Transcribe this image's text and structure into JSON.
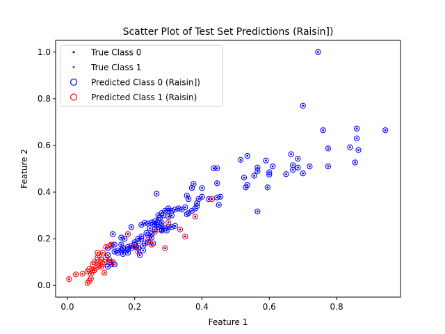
{
  "chart_data": {
    "type": "scatter",
    "title": "Scatter Plot of Test Set Predictions (Raisin])",
    "xlabel": "Feature 1",
    "ylabel": "Feature 2",
    "xlim": [
      -0.035,
      0.99
    ],
    "ylim": [
      -0.05,
      1.05
    ],
    "xticks": [
      "0.0",
      "0.2",
      "0.4",
      "0.6",
      "0.8"
    ],
    "xtick_values": [
      0.0,
      0.2,
      0.4,
      0.6,
      0.8
    ],
    "yticks": [
      "0.0",
      "0.2",
      "0.4",
      "0.6",
      "0.8",
      "1.0"
    ],
    "ytick_values": [
      0.0,
      0.2,
      0.4,
      0.6,
      0.8,
      1.0
    ],
    "grid": false,
    "legend_position": "top-left",
    "colors": {
      "class0": "#0000ff",
      "class1": "#ff0000"
    },
    "legend": [
      {
        "label": "True Class 0",
        "marker": "dot",
        "color": "#0000ff"
      },
      {
        "label": "True Class 1",
        "marker": "dot",
        "color": "#ff0000"
      },
      {
        "label": "Predicted Class 0 (Raisin])",
        "marker": "ring",
        "color": "#0000ff"
      },
      {
        "label": "Predicted Class 1 (Raisin)",
        "marker": "ring",
        "color": "#ff0000"
      }
    ],
    "series": [
      {
        "name": "Predicted Class 0 (Raisin])",
        "true_class": 0,
        "predicted_class": 0,
        "points": [
          [
            0.745,
            1.0
          ],
          [
            0.7,
            0.77
          ],
          [
            0.76,
            0.665
          ],
          [
            0.945,
            0.665
          ],
          [
            0.86,
            0.672
          ],
          [
            0.86,
            0.63
          ],
          [
            0.775,
            0.587
          ],
          [
            0.84,
            0.592
          ],
          [
            0.865,
            0.58
          ],
          [
            0.855,
            0.527
          ],
          [
            0.775,
            0.51
          ],
          [
            0.72,
            0.51
          ],
          [
            0.665,
            0.562
          ],
          [
            0.685,
            0.543
          ],
          [
            0.67,
            0.515
          ],
          [
            0.685,
            0.505
          ],
          [
            0.67,
            0.495
          ],
          [
            0.7,
            0.48
          ],
          [
            0.65,
            0.477
          ],
          [
            0.61,
            0.51
          ],
          [
            0.6,
            0.485
          ],
          [
            0.6,
            0.475
          ],
          [
            0.59,
            0.535
          ],
          [
            0.535,
            0.555
          ],
          [
            0.515,
            0.538
          ],
          [
            0.565,
            0.505
          ],
          [
            0.565,
            0.49
          ],
          [
            0.555,
            0.47
          ],
          [
            0.525,
            0.462
          ],
          [
            0.535,
            0.43
          ],
          [
            0.53,
            0.42
          ],
          [
            0.595,
            0.42
          ],
          [
            0.565,
            0.317
          ],
          [
            0.445,
            0.502
          ],
          [
            0.435,
            0.502
          ],
          [
            0.445,
            0.438
          ],
          [
            0.4,
            0.417
          ],
          [
            0.375,
            0.435
          ],
          [
            0.37,
            0.418
          ],
          [
            0.355,
            0.385
          ],
          [
            0.36,
            0.37
          ],
          [
            0.4,
            0.38
          ],
          [
            0.42,
            0.37
          ],
          [
            0.445,
            0.377
          ],
          [
            0.455,
            0.38
          ],
          [
            0.45,
            0.345
          ],
          [
            0.39,
            0.37
          ],
          [
            0.385,
            0.352
          ],
          [
            0.385,
            0.34
          ],
          [
            0.38,
            0.33
          ],
          [
            0.37,
            0.32
          ],
          [
            0.36,
            0.31
          ],
          [
            0.355,
            0.305
          ],
          [
            0.35,
            0.335
          ],
          [
            0.34,
            0.325
          ],
          [
            0.33,
            0.33
          ],
          [
            0.32,
            0.325
          ],
          [
            0.31,
            0.32
          ],
          [
            0.3,
            0.32
          ],
          [
            0.3,
            0.33
          ],
          [
            0.29,
            0.32
          ],
          [
            0.28,
            0.31
          ],
          [
            0.27,
            0.3
          ],
          [
            0.275,
            0.29
          ],
          [
            0.27,
            0.28
          ],
          [
            0.26,
            0.275
          ],
          [
            0.25,
            0.27
          ],
          [
            0.24,
            0.265
          ],
          [
            0.23,
            0.268
          ],
          [
            0.22,
            0.26
          ],
          [
            0.265,
            0.393
          ],
          [
            0.285,
            0.3
          ],
          [
            0.3,
            0.295
          ],
          [
            0.31,
            0.3
          ],
          [
            0.28,
            0.27
          ],
          [
            0.28,
            0.255
          ],
          [
            0.28,
            0.24
          ],
          [
            0.27,
            0.25
          ],
          [
            0.26,
            0.24
          ],
          [
            0.26,
            0.23
          ],
          [
            0.28,
            0.235
          ],
          [
            0.29,
            0.245
          ],
          [
            0.25,
            0.22
          ],
          [
            0.24,
            0.215
          ],
          [
            0.25,
            0.205
          ],
          [
            0.22,
            0.2
          ],
          [
            0.21,
            0.2
          ],
          [
            0.21,
            0.19
          ],
          [
            0.2,
            0.185
          ],
          [
            0.2,
            0.175
          ],
          [
            0.19,
            0.17
          ],
          [
            0.18,
            0.165
          ],
          [
            0.18,
            0.155
          ],
          [
            0.17,
            0.15
          ],
          [
            0.165,
            0.16
          ],
          [
            0.16,
            0.15
          ],
          [
            0.15,
            0.15
          ],
          [
            0.15,
            0.14
          ],
          [
            0.14,
            0.145
          ],
          [
            0.16,
            0.175
          ],
          [
            0.17,
            0.2
          ],
          [
            0.16,
            0.205
          ],
          [
            0.135,
            0.22
          ],
          [
            0.19,
            0.25
          ],
          [
            0.14,
            0.175
          ],
          [
            0.13,
            0.17
          ],
          [
            0.12,
            0.16
          ],
          [
            0.19,
            0.16
          ],
          [
            0.21,
            0.16
          ],
          [
            0.225,
            0.17
          ],
          [
            0.23,
            0.18
          ],
          [
            0.24,
            0.185
          ],
          [
            0.215,
            0.13
          ],
          [
            0.225,
            0.15
          ],
          [
            0.205,
            0.165
          ],
          [
            0.12,
            0.08
          ],
          [
            0.13,
            0.09
          ],
          [
            0.11,
            0.1
          ],
          [
            0.22,
            0.21
          ],
          [
            0.235,
            0.225
          ],
          [
            0.18,
            0.14
          ],
          [
            0.165,
            0.135
          ],
          [
            0.255,
            0.18
          ],
          [
            0.31,
            0.25
          ],
          [
            0.32,
            0.255
          ],
          [
            0.3,
            0.25
          ],
          [
            0.295,
            0.235
          ],
          [
            0.265,
            0.26
          ],
          [
            0.245,
            0.245
          ],
          [
            0.26,
            0.26
          ]
        ]
      },
      {
        "name": "Predicted Class 1 (Raisin)",
        "true_class": 1,
        "predicted_class": 1,
        "points": [
          [
            0.005,
            0.027
          ],
          [
            0.025,
            0.047
          ],
          [
            0.045,
            0.05
          ],
          [
            0.06,
            0.01
          ],
          [
            0.065,
            0.02
          ],
          [
            0.07,
            0.03
          ],
          [
            0.06,
            0.06
          ],
          [
            0.07,
            0.05
          ],
          [
            0.075,
            0.065
          ],
          [
            0.065,
            0.07
          ],
          [
            0.08,
            0.065
          ],
          [
            0.085,
            0.075
          ],
          [
            0.075,
            0.09
          ],
          [
            0.08,
            0.1
          ],
          [
            0.09,
            0.1
          ],
          [
            0.09,
            0.12
          ],
          [
            0.095,
            0.13
          ],
          [
            0.09,
            0.14
          ],
          [
            0.1,
            0.11
          ],
          [
            0.11,
            0.1
          ],
          [
            0.115,
            0.12
          ],
          [
            0.105,
            0.14
          ],
          [
            0.12,
            0.13
          ],
          [
            0.115,
            0.165
          ],
          [
            0.125,
            0.11
          ],
          [
            0.13,
            0.1
          ],
          [
            0.11,
            0.055
          ],
          [
            0.1,
            0.08
          ],
          [
            0.105,
            0.09
          ],
          [
            0.095,
            0.085
          ],
          [
            0.14,
            0.09
          ],
          [
            0.135,
            0.1
          ],
          [
            0.13,
            0.175
          ]
        ]
      },
      {
        "name": "",
        "true_class": 1,
        "predicted_class": 0,
        "points": [
          [
            0.14,
            0.09
          ],
          [
            0.12,
            0.13
          ],
          [
            0.125,
            0.1
          ]
        ]
      },
      {
        "name": "",
        "true_class": 0,
        "predicted_class": 1,
        "points": [
          [
            0.18,
            0.22
          ],
          [
            0.21,
            0.145
          ],
          [
            0.24,
            0.195
          ],
          [
            0.25,
            0.175
          ],
          [
            0.29,
            0.16
          ],
          [
            0.335,
            0.24
          ],
          [
            0.35,
            0.21
          ],
          [
            0.38,
            0.295
          ],
          [
            0.43,
            0.37
          ],
          [
            0.3,
            0.27
          ],
          [
            0.26,
            0.23
          ],
          [
            0.2,
            0.165
          ]
        ]
      }
    ]
  }
}
